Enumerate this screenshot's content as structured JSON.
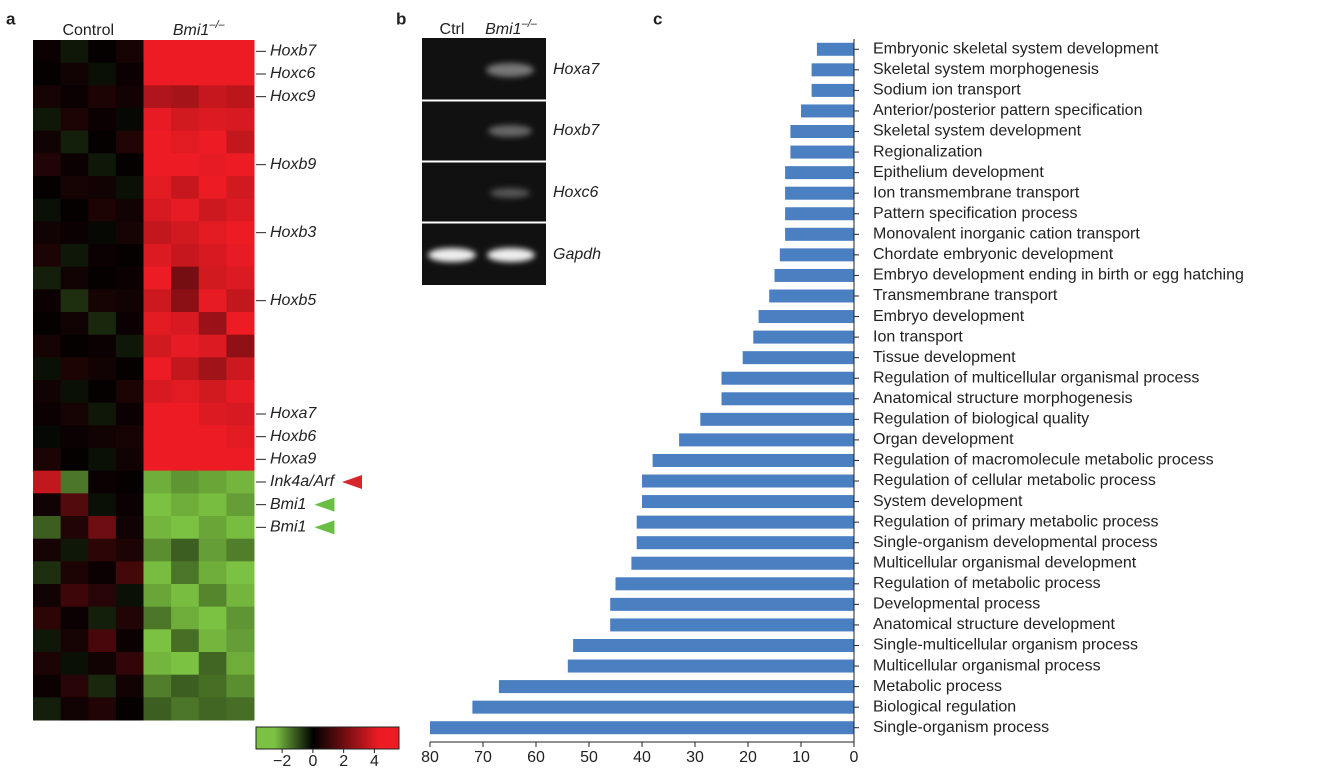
{
  "panel_labels": [
    "a",
    "b",
    "c"
  ],
  "chart_data": [
    {
      "type": "heatmap",
      "groups": [
        {
          "label": "Control"
        },
        {
          "label": "Bmi1",
          "sup": "–/–"
        }
      ],
      "rows": [
        "Hoxb7",
        "Hoxc6",
        "Hoxc9",
        null,
        null,
        "Hoxb9",
        null,
        null,
        "Hoxb3",
        null,
        null,
        "Hoxb5",
        null,
        null,
        null,
        null,
        "Hoxa7",
        "Hoxb6",
        "Hoxa9",
        "Ink4a/Arf",
        "Bmi1",
        "Bmi1",
        null,
        null,
        null,
        null,
        null,
        null,
        null,
        null
      ],
      "values": [
        [
          0.2,
          -0.3,
          0.1,
          0.4,
          5,
          5,
          5,
          5
        ],
        [
          0.1,
          0.3,
          -0.2,
          0.2,
          4.5,
          4.8,
          5,
          5
        ],
        [
          0.4,
          0.2,
          0.5,
          0.3,
          3.2,
          3,
          3.6,
          3.4
        ],
        [
          -0.3,
          0.5,
          0.2,
          -0.1,
          4.2,
          3.8,
          4,
          3.9
        ],
        [
          0.3,
          -0.4,
          0.1,
          0.6,
          4.6,
          4.1,
          4.3,
          3.5
        ],
        [
          0.6,
          0.2,
          -0.3,
          0.1,
          4.8,
          4.5,
          4.2,
          4.6
        ],
        [
          0.1,
          0.4,
          0.3,
          -0.2,
          4.1,
          3.6,
          4.4,
          3.8
        ],
        [
          -0.2,
          0.1,
          0.5,
          0.3,
          3.9,
          4.2,
          3.7,
          4
        ],
        [
          0.3,
          0.2,
          -0.1,
          0.4,
          3.5,
          3.8,
          4.1,
          4.3
        ],
        [
          0.5,
          -0.3,
          0.2,
          0.1,
          4,
          3.6,
          3.9,
          4.2
        ],
        [
          -0.4,
          0.3,
          0.1,
          0.2,
          4.3,
          2.1,
          3.8,
          4
        ],
        [
          0.2,
          -0.6,
          0.4,
          0.3,
          3.7,
          2.5,
          4.2,
          3.5
        ],
        [
          0.1,
          0.3,
          -0.5,
          0.2,
          4.1,
          3.9,
          2.8,
          4.3
        ],
        [
          0.4,
          0.1,
          0.2,
          -0.3,
          3.8,
          4.2,
          4,
          2.6
        ],
        [
          -0.2,
          0.5,
          0.3,
          0.1,
          4.4,
          3.5,
          2.9,
          3.7
        ],
        [
          0.3,
          -0.2,
          0.1,
          0.5,
          3.9,
          4.1,
          3.8,
          4.2
        ],
        [
          0.2,
          0.4,
          -0.3,
          0.2,
          4.5,
          4.3,
          4,
          3.9
        ],
        [
          -0.1,
          0.2,
          0.3,
          0.4,
          4.7,
          4.6,
          4.4,
          4.1
        ],
        [
          0.5,
          0.1,
          -0.2,
          0.3,
          5,
          4.8,
          4.5,
          4.6
        ],
        [
          3.5,
          -1.5,
          0.2,
          0.1,
          -2.2,
          -1.9,
          -2.1,
          -2.3
        ],
        [
          0.3,
          1.5,
          -0.2,
          0.2,
          -2.5,
          -2.2,
          -2.4,
          -2
        ],
        [
          -1.2,
          0.6,
          2,
          0.3,
          -2.3,
          -2.5,
          -2.1,
          -2.4
        ],
        [
          0.4,
          -0.3,
          0.8,
          0.5,
          -1.8,
          -1.2,
          -2,
          -1.6
        ],
        [
          -0.6,
          0.5,
          0.2,
          1.2,
          -2.4,
          -1.5,
          -2.2,
          -2.6
        ],
        [
          0.3,
          1.1,
          0.7,
          -0.2,
          -2.1,
          -2.4,
          -1.7,
          -2.3
        ],
        [
          0.8,
          0.2,
          -0.4,
          0.6,
          -1.5,
          -2.2,
          -2.5,
          -1.9
        ],
        [
          -0.3,
          0.4,
          1.3,
          0.2,
          -2.6,
          -1.4,
          -2.3,
          -2
        ],
        [
          0.5,
          -0.2,
          0.3,
          0.9,
          -2.3,
          -2.5,
          -1.3,
          -2.2
        ],
        [
          0.2,
          0.7,
          -0.5,
          0.3,
          -1.6,
          -1.2,
          -1.4,
          -1.8
        ],
        [
          -0.4,
          0.3,
          0.6,
          0.1,
          -1.2,
          -1.5,
          -1.3,
          -1.4
        ]
      ],
      "arrows": [
        {
          "row": 19,
          "color": "#d7262b"
        },
        {
          "row": 20,
          "color": "#6abd45"
        },
        {
          "row": 21,
          "color": "#6abd45"
        }
      ],
      "colors": {
        "low": "#7cc242",
        "mid": "#000000",
        "high": "#ed1c24"
      },
      "clim": [
        -3.7,
        5.6
      ],
      "cticks": [
        {
          "value": -2,
          "label": "−2"
        },
        0,
        2,
        4
      ]
    },
    {
      "type": "bar",
      "orientation": "horizontal",
      "color": "#4a7fc1",
      "categories": [
        "Embryonic skeletal system development",
        "Skeletal system morphogenesis",
        "Sodium ion transport",
        "Anterior/posterior pattern specification",
        "Skeletal system development",
        "Regionalization",
        "Epithelium development",
        "Ion transmembrane transport",
        "Pattern specification process",
        "Monovalent inorganic cation transport",
        "Chordate embryonic development",
        "Embryo development ending in birth or egg hatching",
        "Transmembrane transport",
        "Embryo development",
        "Ion transport",
        "Tissue development",
        "Regulation of multicellular organismal process",
        "Anatomical structure morphogenesis",
        "Regulation of biological quality",
        "Organ development",
        "Regulation of macromolecule metabolic process",
        "Regulation of cellular metabolic process",
        "System development",
        "Regulation of primary metabolic process",
        "Single-organism developmental process",
        "Multicellular organismal development",
        "Regulation of metabolic process",
        "Developmental process",
        "Anatomical structure development",
        "Single-multicellular organism process",
        "Multicellular organismal process",
        "Metabolic process",
        "Biological regulation",
        "Single-organism process"
      ],
      "values": [
        7,
        8,
        8,
        10,
        12,
        12,
        13,
        13,
        13,
        13,
        14,
        15,
        16,
        18,
        19,
        21,
        25,
        25,
        29,
        33,
        38,
        40,
        40,
        41,
        41,
        42,
        45,
        46,
        46,
        53,
        54,
        67,
        72,
        80
      ],
      "xlim": [
        80,
        0
      ],
      "xticks": [
        80,
        70,
        60,
        50,
        40,
        30,
        20,
        10,
        0
      ]
    }
  ],
  "gel": {
    "lanes": [
      {
        "label": "Ctrl"
      },
      {
        "label": "Bmi1",
        "sup": "–/–"
      }
    ],
    "rows": [
      "Hoxa7",
      "Hoxb7",
      "Hoxc6",
      "Gapdh"
    ]
  }
}
